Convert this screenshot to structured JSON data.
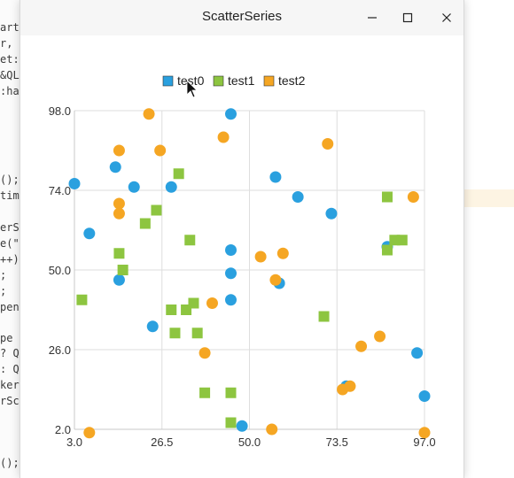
{
  "window": {
    "title": "ScatterSeries"
  },
  "background_code": [
    "art",
    "r, (",
    "et:",
    "&QL",
    ":ha",
    "();",
    "time",
    "erS",
    "e(\"",
    "++)",
    ";",
    ";",
    "pend",
    "pe s",
    "? Q",
    ": Q",
    "ker",
    "rSca",
    "();"
  ],
  "chart_data": {
    "type": "scatter",
    "xlim": [
      3.0,
      97.0
    ],
    "ylim": [
      2.0,
      98.0
    ],
    "x_ticks": [
      "3.0",
      "26.5",
      "50.0",
      "73.5",
      "97.0"
    ],
    "y_ticks": [
      "98.0",
      "74.0",
      "50.0",
      "26.0",
      "2.0"
    ],
    "legend_position": "top-center",
    "grid": true,
    "series": [
      {
        "name": "test0",
        "marker": "circle",
        "color": "#2aa0df",
        "points": [
          [
            3,
            76
          ],
          [
            7,
            61
          ],
          [
            14,
            81
          ],
          [
            15,
            47
          ],
          [
            19,
            75
          ],
          [
            24,
            33
          ],
          [
            29,
            75
          ],
          [
            45,
            97
          ],
          [
            45,
            56
          ],
          [
            45,
            49
          ],
          [
            45,
            41
          ],
          [
            48,
            3
          ],
          [
            63,
            72
          ],
          [
            57,
            78
          ],
          [
            58,
            46
          ],
          [
            72,
            67
          ],
          [
            76,
            15
          ],
          [
            87,
            57
          ],
          [
            95,
            25
          ],
          [
            97,
            12
          ]
        ]
      },
      {
        "name": "test1",
        "marker": "square",
        "color": "#8dc540",
        "points": [
          [
            5,
            41
          ],
          [
            15,
            55
          ],
          [
            16,
            50
          ],
          [
            22,
            64
          ],
          [
            25,
            68
          ],
          [
            29,
            38
          ],
          [
            30,
            31
          ],
          [
            31,
            79
          ],
          [
            33,
            38
          ],
          [
            34,
            59
          ],
          [
            35,
            40
          ],
          [
            36,
            31
          ],
          [
            38,
            13
          ],
          [
            45,
            13
          ],
          [
            45,
            4
          ],
          [
            70,
            36
          ],
          [
            87,
            72
          ],
          [
            87,
            56
          ],
          [
            89,
            59
          ],
          [
            91,
            59
          ]
        ]
      },
      {
        "name": "test2",
        "marker": "circle",
        "color": "#f5a623",
        "points": [
          [
            7,
            1
          ],
          [
            15,
            86
          ],
          [
            15,
            70
          ],
          [
            15,
            67
          ],
          [
            23,
            97
          ],
          [
            26,
            86
          ],
          [
            40,
            40
          ],
          [
            38,
            25
          ],
          [
            43,
            90
          ],
          [
            53,
            54
          ],
          [
            56,
            2
          ],
          [
            57,
            47
          ],
          [
            59,
            55
          ],
          [
            71,
            88
          ],
          [
            75,
            14
          ],
          [
            77,
            15
          ],
          [
            80,
            27
          ],
          [
            85,
            30
          ],
          [
            94,
            72
          ],
          [
            97,
            1
          ]
        ]
      }
    ]
  }
}
